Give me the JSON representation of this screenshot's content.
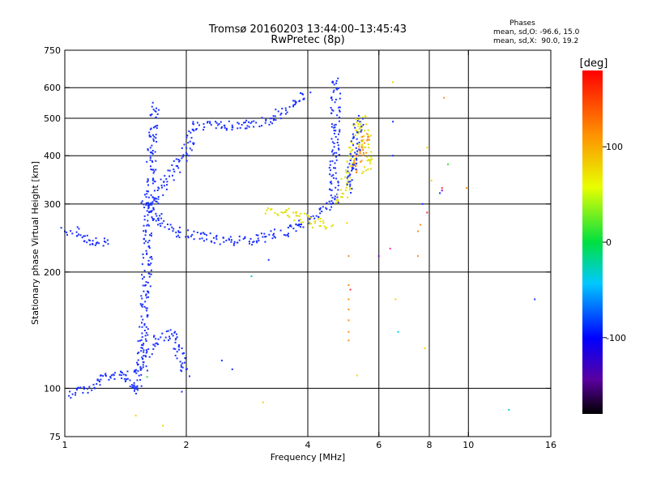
{
  "chart_data": {
    "type": "scatter",
    "title": "Tromsø 20160203 13:44:00–13:45:43",
    "subtitle": "RwPretec (8p)",
    "xlabel": "Frequency [MHz]",
    "ylabel": "Stationary phase Virtual Height [km]",
    "x_scale": "log",
    "y_scale": "log",
    "xlim": [
      1,
      16
    ],
    "ylim": [
      75,
      750
    ],
    "x_ticks": [
      1,
      2,
      4,
      6,
      8,
      10,
      16
    ],
    "y_ticks": [
      75,
      100,
      200,
      300,
      400,
      500,
      600,
      750
    ],
    "x_tick_labels": [
      "1",
      "2",
      "4",
      "6",
      "8",
      "10",
      "16"
    ],
    "y_tick_labels": [
      "75",
      "100",
      "200",
      "300",
      "400",
      "500",
      "600",
      "750"
    ],
    "x_gridlines": [
      2,
      4,
      6,
      8,
      10
    ],
    "y_gridlines": [
      100,
      200,
      300,
      400,
      500,
      600
    ],
    "grid": true,
    "phase_info": {
      "heading": "Phases",
      "line_o": "mean, sd,O: -96.6, 15.0",
      "line_x": "mean, sd,X:  90.0, 19.2"
    },
    "colorbar": {
      "label": "[deg]",
      "range": [
        -180,
        180
      ],
      "ticks": [
        100,
        0,
        -100
      ],
      "tick_labels": [
        "100",
        "0",
        "-100"
      ]
    },
    "traces": [
      {
        "color": "#1a30ff",
        "points": [
          [
            1.02,
            97
          ],
          [
            1.05,
            98
          ],
          [
            1.08,
            99
          ],
          [
            1.1,
            100
          ],
          [
            1.13,
            99
          ],
          [
            1.17,
            101
          ],
          [
            1.2,
            103
          ],
          [
            1.25,
            106
          ],
          [
            1.3,
            108
          ],
          [
            1.36,
            109
          ],
          [
            1.4,
            111
          ],
          [
            1.45,
            104
          ],
          [
            1.5,
            98
          ],
          [
            1.52,
            108
          ],
          [
            1.55,
            125
          ],
          [
            1.57,
            140
          ],
          [
            1.58,
            165
          ],
          [
            1.59,
            190
          ],
          [
            1.6,
            215
          ],
          [
            1.61,
            250
          ],
          [
            1.62,
            290
          ],
          [
            1.63,
            330
          ],
          [
            1.64,
            380
          ],
          [
            1.65,
            440
          ],
          [
            1.66,
            500
          ],
          [
            1.67,
            545
          ]
        ]
      },
      {
        "color": "#1a30ff",
        "points": [
          [
            1.0,
            258
          ],
          [
            1.05,
            254
          ],
          [
            1.1,
            248
          ],
          [
            1.15,
            242
          ],
          [
            1.2,
            236
          ],
          [
            1.25,
            240
          ],
          [
            1.28,
            237
          ]
        ]
      },
      {
        "color": "#1a30ff",
        "points": [
          [
            1.55,
            310
          ],
          [
            1.6,
            290
          ],
          [
            1.7,
            275
          ],
          [
            1.8,
            262
          ],
          [
            1.9,
            255
          ],
          [
            2.0,
            250
          ],
          [
            2.2,
            246
          ],
          [
            2.4,
            242
          ],
          [
            2.6,
            240
          ],
          [
            2.8,
            241
          ],
          [
            3.0,
            243
          ],
          [
            3.2,
            247
          ],
          [
            3.4,
            251
          ],
          [
            3.6,
            258
          ],
          [
            3.8,
            266
          ],
          [
            4.0,
            272
          ],
          [
            4.2,
            280
          ],
          [
            4.4,
            292
          ],
          [
            4.6,
            310
          ]
        ]
      },
      {
        "color": "#1a30ff",
        "points": [
          [
            4.65,
            300
          ],
          [
            4.65,
            350
          ],
          [
            4.66,
            400
          ],
          [
            4.67,
            450
          ],
          [
            4.68,
            500
          ],
          [
            4.69,
            550
          ],
          [
            4.7,
            600
          ],
          [
            4.71,
            640
          ]
        ]
      },
      {
        "color": "#1a30ff",
        "points": [
          [
            1.63,
            290
          ],
          [
            1.7,
            320
          ],
          [
            1.8,
            345
          ],
          [
            1.9,
            375
          ],
          [
            2.0,
            410
          ],
          [
            2.05,
            450
          ],
          [
            2.1,
            480
          ],
          [
            2.2,
            478
          ],
          [
            2.4,
            476
          ],
          [
            2.6,
            478
          ],
          [
            2.8,
            480
          ],
          [
            3.0,
            485
          ],
          [
            3.2,
            495
          ],
          [
            3.4,
            510
          ],
          [
            3.6,
            530
          ],
          [
            3.8,
            555
          ],
          [
            4.0,
            580
          ]
        ]
      },
      {
        "color": "#1a30ff",
        "points": [
          [
            1.55,
            112
          ],
          [
            1.6,
            120
          ],
          [
            1.65,
            128
          ],
          [
            1.7,
            134
          ],
          [
            1.75,
            136
          ],
          [
            1.8,
            138
          ],
          [
            1.85,
            140
          ],
          [
            1.9,
            130
          ],
          [
            1.95,
            118
          ],
          [
            2.0,
            108
          ]
        ]
      },
      {
        "color": "#e0e000",
        "points": [
          [
            3.2,
            290
          ],
          [
            3.5,
            285
          ],
          [
            3.8,
            278
          ],
          [
            4.1,
            270
          ],
          [
            4.4,
            265
          ],
          [
            4.6,
            263
          ]
        ]
      },
      {
        "color": "#e0e000",
        "points": [
          [
            4.8,
            300
          ],
          [
            4.9,
            320
          ],
          [
            5.0,
            345
          ],
          [
            5.1,
            380
          ],
          [
            5.2,
            420
          ],
          [
            5.3,
            465
          ],
          [
            5.4,
            500
          ],
          [
            5.5,
            480
          ],
          [
            5.6,
            430
          ],
          [
            5.65,
            390
          ],
          [
            5.6,
            360
          ]
        ]
      },
      {
        "color": "#ff8c1a",
        "points": [
          [
            5.2,
            360
          ],
          [
            5.3,
            380
          ],
          [
            5.4,
            400
          ],
          [
            5.5,
            440
          ],
          [
            5.6,
            460
          ]
        ]
      },
      {
        "color": "#1a30ff",
        "points": [
          [
            5.1,
            330
          ],
          [
            5.2,
            390
          ],
          [
            5.3,
            450
          ],
          [
            5.4,
            500
          ]
        ]
      }
    ],
    "scatter": [
      {
        "color": "#ff8c1a",
        "points": [
          [
            5.05,
            220
          ],
          [
            5.05,
            185
          ],
          [
            5.05,
            170
          ],
          [
            5.05,
            160
          ],
          [
            5.05,
            150
          ],
          [
            5.05,
            140
          ],
          [
            5.05,
            133
          ],
          [
            7.5,
            220
          ],
          [
            7.5,
            255
          ],
          [
            7.6,
            265
          ],
          [
            8.7,
            565
          ],
          [
            9.9,
            330
          ]
        ]
      },
      {
        "color": "#ff3030",
        "points": [
          [
            5.1,
            180
          ],
          [
            7.9,
            285
          ],
          [
            8.6,
            330
          ]
        ]
      },
      {
        "color": "#ffd000",
        "points": [
          [
            1.5,
            85
          ],
          [
            1.75,
            80
          ],
          [
            3.1,
            92
          ],
          [
            5.3,
            108
          ],
          [
            6.5,
            620
          ],
          [
            6.6,
            170
          ],
          [
            7.8,
            127
          ],
          [
            7.9,
            420
          ],
          [
            8.1,
            345
          ],
          [
            5.0,
            268
          ]
        ]
      },
      {
        "color": "#1a30ff",
        "points": [
          [
            2.45,
            118
          ],
          [
            2.6,
            112
          ],
          [
            3.2,
            215
          ],
          [
            6.5,
            400
          ],
          [
            6.5,
            490
          ],
          [
            7.7,
            300
          ],
          [
            8.5,
            320
          ],
          [
            14.6,
            170
          ],
          [
            1.95,
            98
          ]
        ]
      },
      {
        "color": "#8a00d4",
        "points": [
          [
            6.0,
            220
          ],
          [
            8.6,
            325
          ]
        ]
      },
      {
        "color": "#00c8e0",
        "points": [
          [
            2.9,
            195
          ],
          [
            6.7,
            140
          ],
          [
            12.6,
            88
          ]
        ]
      },
      {
        "color": "#30e030",
        "points": [
          [
            8.9,
            380
          ],
          [
            1.6,
            107
          ]
        ]
      },
      {
        "color": "#ff30a0",
        "points": [
          [
            6.4,
            230
          ]
        ]
      }
    ]
  }
}
